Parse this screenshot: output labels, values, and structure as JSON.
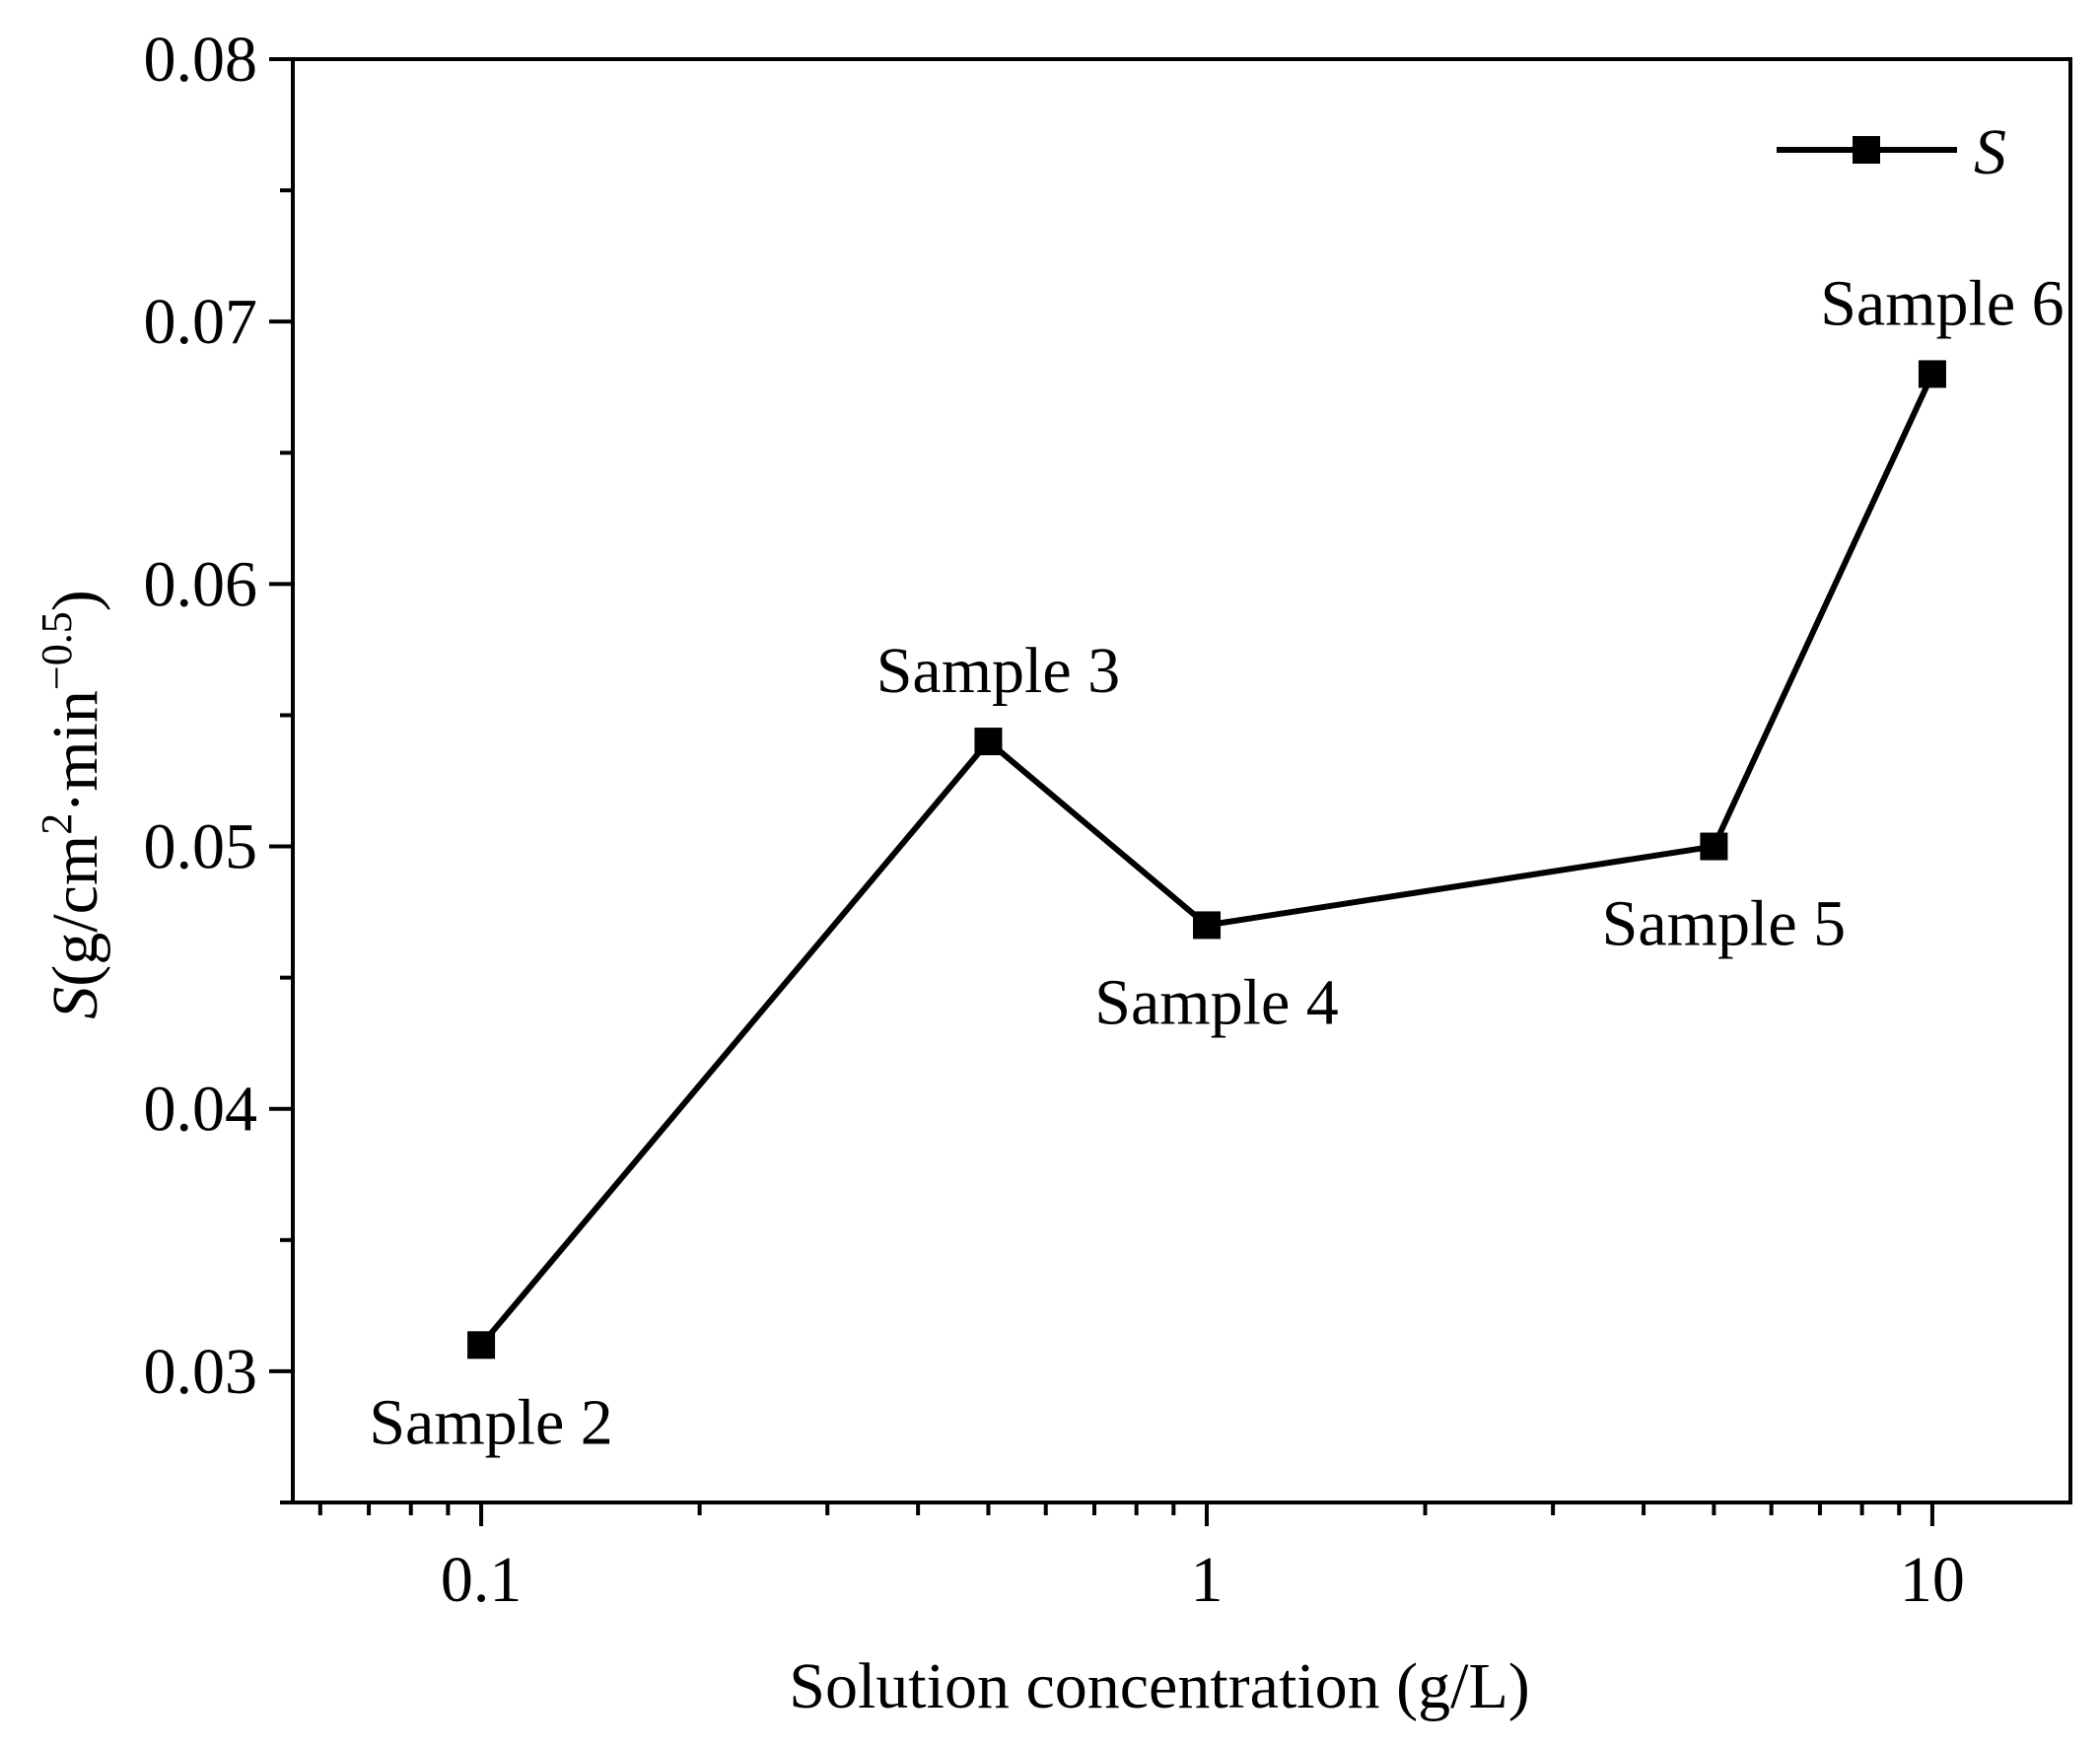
{
  "chart_data": {
    "type": "line",
    "x_scale": "log",
    "series": [
      {
        "name": "S",
        "x": [
          0.1,
          0.5,
          1,
          5,
          10
        ],
        "y": [
          0.031,
          0.054,
          0.047,
          0.05,
          0.068
        ],
        "marker": "square",
        "color": "#000000"
      }
    ],
    "point_labels": [
      {
        "text": "Sample 2",
        "x": 0.1,
        "y": 0.031,
        "placement": "below"
      },
      {
        "text": "Sample 3",
        "x": 0.5,
        "y": 0.054,
        "placement": "above"
      },
      {
        "text": "Sample 4",
        "x": 1,
        "y": 0.047,
        "placement": "below"
      },
      {
        "text": "Sample 5",
        "x": 5,
        "y": 0.05,
        "placement": "below"
      },
      {
        "text": "Sample 6",
        "x": 10,
        "y": 0.068,
        "placement": "above"
      }
    ],
    "xlim": [
      0.055,
      15.5
    ],
    "ylim": [
      0.025,
      0.08
    ],
    "x_ticks": [
      {
        "value": 0.1,
        "label": "0.1"
      },
      {
        "value": 1,
        "label": "1"
      },
      {
        "value": 10,
        "label": "10"
      }
    ],
    "y_ticks": [
      {
        "value": 0.03,
        "label": "0.03"
      },
      {
        "value": 0.04,
        "label": "0.04"
      },
      {
        "value": 0.05,
        "label": "0.05"
      },
      {
        "value": 0.06,
        "label": "0.06"
      },
      {
        "value": 0.07,
        "label": "0.07"
      },
      {
        "value": 0.08,
        "label": "0.08"
      }
    ],
    "xlabel": "Solution concentration (g/L)",
    "ylabel": {
      "symbol": "S",
      "part1": "(g/cm",
      "sup1": "2",
      "part2": "·min",
      "sup2": "−0.5",
      "part3": ")"
    },
    "legend": {
      "label": "S",
      "position": "top-right"
    },
    "grid": false
  }
}
